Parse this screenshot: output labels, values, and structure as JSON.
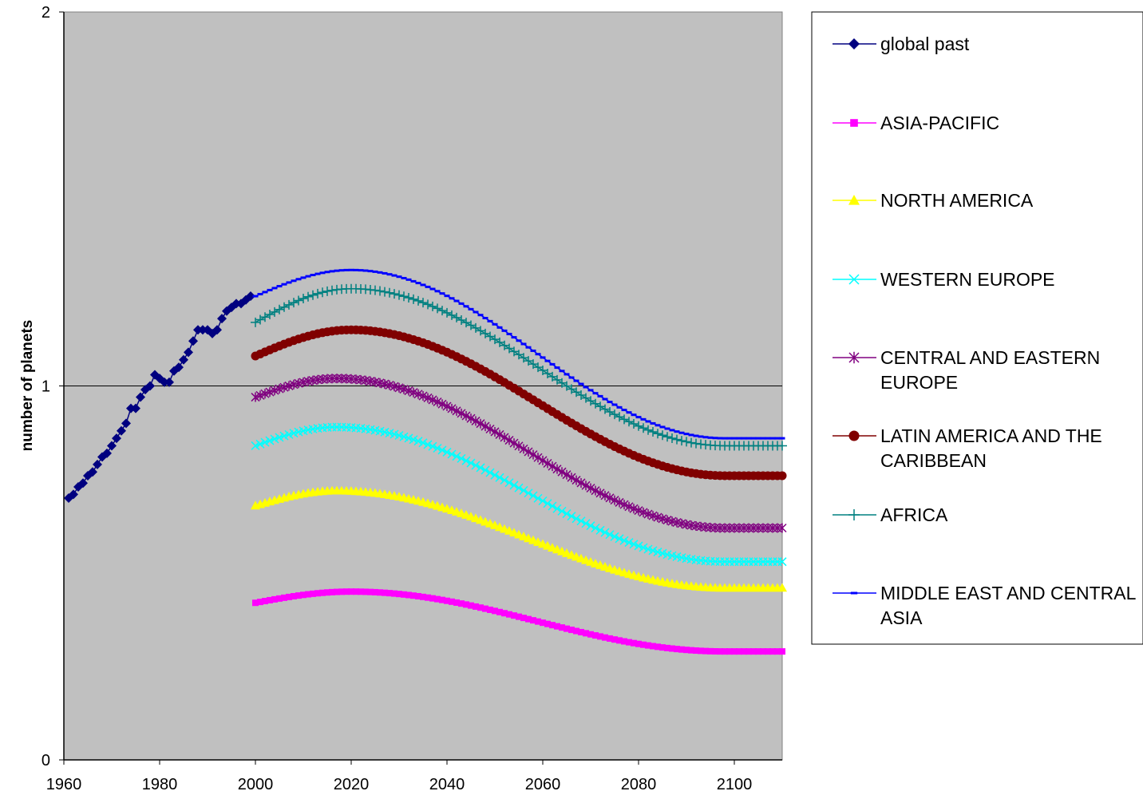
{
  "chart_data": {
    "type": "line",
    "title": "",
    "xlabel": "",
    "ylabel": "number of planets",
    "xlim": [
      1960,
      2110
    ],
    "ylim": [
      0,
      2
    ],
    "x_ticks": [
      1960,
      1980,
      2000,
      2020,
      2040,
      2060,
      2080,
      2100
    ],
    "y_ticks": [
      0,
      1,
      2
    ],
    "gridlines_y": [
      1
    ],
    "plot_background": "#C0C0C0",
    "legend_position": "right",
    "series": [
      {
        "name": "global past",
        "color": "#000080",
        "marker": "diamond",
        "x": [
          1961,
          1962,
          1963,
          1964,
          1965,
          1966,
          1967,
          1968,
          1969,
          1970,
          1971,
          1972,
          1973,
          1974,
          1975,
          1976,
          1977,
          1978,
          1979,
          1980,
          1981,
          1982,
          1983,
          1984,
          1985,
          1986,
          1987,
          1988,
          1989,
          1990,
          1991,
          1992,
          1993,
          1994,
          1995,
          1996,
          1997,
          1998,
          1999
        ],
        "y": [
          0.7,
          0.71,
          0.73,
          0.74,
          0.76,
          0.77,
          0.79,
          0.81,
          0.82,
          0.84,
          0.86,
          0.88,
          0.9,
          0.94,
          0.94,
          0.97,
          0.99,
          1.0,
          1.03,
          1.02,
          1.01,
          1.01,
          1.04,
          1.05,
          1.07,
          1.09,
          1.12,
          1.15,
          1.15,
          1.15,
          1.14,
          1.15,
          1.18,
          1.2,
          1.21,
          1.22,
          1.22,
          1.23,
          1.24
        ]
      },
      {
        "name": "ASIA-PACIFIC",
        "color": "#FF00FF",
        "marker": "square",
        "x_start": 2000,
        "x_end": 2110,
        "y_start": 0.42,
        "y_peak": 0.45,
        "peak_year": 2020,
        "y_end": 0.29
      },
      {
        "name": "NORTH AMERICA",
        "color": "#FFFF00",
        "marker": "triangle",
        "x_start": 2000,
        "x_end": 2110,
        "y_start": 0.68,
        "y_peak": 0.72,
        "peak_year": 2017,
        "y_end": 0.46
      },
      {
        "name": "WESTERN EUROPE",
        "color": "#00FFFF",
        "marker": "x",
        "x_start": 2000,
        "x_end": 2110,
        "y_start": 0.84,
        "y_peak": 0.89,
        "peak_year": 2017,
        "y_end": 0.53
      },
      {
        "name": "CENTRAL AND EASTERN EUROPE",
        "color": "#800080",
        "marker": "star",
        "x_start": 2000,
        "x_end": 2110,
        "y_start": 0.97,
        "y_peak": 1.02,
        "peak_year": 2017,
        "y_end": 0.62
      },
      {
        "name": "LATIN AMERICA AND THE CARIBBEAN",
        "color": "#800000",
        "marker": "circle",
        "x_start": 2000,
        "x_end": 2110,
        "y_start": 1.08,
        "y_peak": 1.15,
        "peak_year": 2020,
        "y_end": 0.76
      },
      {
        "name": "AFRICA",
        "color": "#008080",
        "marker": "plus",
        "x_start": 2000,
        "x_end": 2110,
        "y_start": 1.17,
        "y_peak": 1.26,
        "peak_year": 2020,
        "y_end": 0.84
      },
      {
        "name": "MIDDLE EAST AND CENTRAL ASIA",
        "color": "#0000FF",
        "marker": "dash",
        "x_start": 2000,
        "x_end": 2110,
        "y_start": 1.24,
        "y_peak": 1.31,
        "peak_year": 2020,
        "y_end": 0.86
      }
    ]
  }
}
